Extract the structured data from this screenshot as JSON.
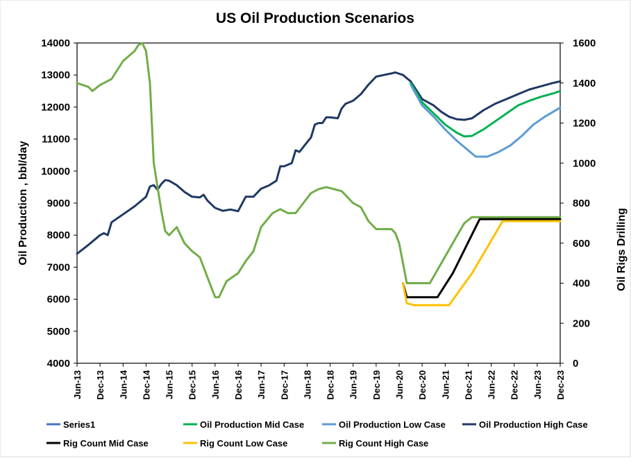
{
  "chart_data": {
    "type": "line",
    "title": "US Oil Production Scenarios",
    "ylabel": "Oil Production , bbl/day",
    "y2label": "Oil Rigs Drilling",
    "xlabel": "",
    "ylim": [
      4000,
      14000
    ],
    "y2lim": [
      0,
      1600
    ],
    "yticks": [
      4000,
      5000,
      6000,
      7000,
      8000,
      9000,
      10000,
      11000,
      12000,
      13000,
      14000
    ],
    "y2ticks": [
      0,
      200,
      400,
      600,
      800,
      1000,
      1200,
      1400,
      1600
    ],
    "x_start": "2013-06",
    "x_end": "2023-12",
    "x_ticks": [
      "Jun-13",
      "Dec-13",
      "Jun-14",
      "Dec-14",
      "Jun-15",
      "Dec-15",
      "Jun-16",
      "Dec-16",
      "Jun-17",
      "Dec-17",
      "Jun-18",
      "Dec-18",
      "Jun-19",
      "Dec-19",
      "Jun-20",
      "Dec-20",
      "Jun-21",
      "Dec-21",
      "Jun-22",
      "Dec-22",
      "Jun-23",
      "Dec-23"
    ],
    "grid": false,
    "legend": "bottom",
    "legend_entries": [
      {
        "name": "Series1",
        "color": "#4472C4"
      },
      {
        "name": "Oil Production Mid Case",
        "color": "#00B050"
      },
      {
        "name": "Oil Production Low Case",
        "color": "#5B9BD5"
      },
      {
        "name": "Oil Production High Case",
        "color": "#1F3864"
      },
      {
        "name": "Rig Count Mid Case",
        "color": "#000000"
      },
      {
        "name": "Rig Count Low Case",
        "color": "#FFC000"
      },
      {
        "name": "Rig Count High Case",
        "color": "#70AD47"
      }
    ],
    "series": [
      {
        "name": "Oil Production High Case",
        "axis": "left",
        "color": "#1F3864",
        "points": [
          [
            "2013-06",
            7420
          ],
          [
            "2013-09",
            7700
          ],
          [
            "2013-12",
            8000
          ],
          [
            "2014-01",
            8060
          ],
          [
            "2014-02",
            8000
          ],
          [
            "2014-03",
            8400
          ],
          [
            "2014-06",
            8650
          ],
          [
            "2014-09",
            8900
          ],
          [
            "2014-12",
            9200
          ],
          [
            "2015-01",
            9520
          ],
          [
            "2015-02",
            9560
          ],
          [
            "2015-03",
            9420
          ],
          [
            "2015-04",
            9600
          ],
          [
            "2015-05",
            9720
          ],
          [
            "2015-06",
            9700
          ],
          [
            "2015-08",
            9560
          ],
          [
            "2015-10",
            9350
          ],
          [
            "2015-12",
            9200
          ],
          [
            "2016-02",
            9180
          ],
          [
            "2016-03",
            9260
          ],
          [
            "2016-04",
            9080
          ],
          [
            "2016-06",
            8850
          ],
          [
            "2016-08",
            8760
          ],
          [
            "2016-10",
            8800
          ],
          [
            "2016-12",
            8750
          ],
          [
            "2017-02",
            9200
          ],
          [
            "2017-04",
            9200
          ],
          [
            "2017-06",
            9450
          ],
          [
            "2017-08",
            9550
          ],
          [
            "2017-10",
            9700
          ],
          [
            "2017-11",
            10150
          ],
          [
            "2017-12",
            10150
          ],
          [
            "2018-02",
            10250
          ],
          [
            "2018-03",
            10650
          ],
          [
            "2018-04",
            10600
          ],
          [
            "2018-06",
            10900
          ],
          [
            "2018-07",
            11050
          ],
          [
            "2018-08",
            11450
          ],
          [
            "2018-09",
            11500
          ],
          [
            "2018-10",
            11500
          ],
          [
            "2018-11",
            11680
          ],
          [
            "2018-12",
            11680
          ],
          [
            "2019-02",
            11650
          ],
          [
            "2019-03",
            11950
          ],
          [
            "2019-04",
            12100
          ],
          [
            "2019-06",
            12200
          ],
          [
            "2019-08",
            12400
          ],
          [
            "2019-10",
            12700
          ],
          [
            "2019-12",
            12950
          ],
          [
            "2020-02",
            13000
          ],
          [
            "2020-04",
            13050
          ],
          [
            "2020-05",
            13080
          ],
          [
            "2020-07",
            13000
          ],
          [
            "2020-09",
            12800
          ],
          [
            "2020-12",
            12250
          ],
          [
            "2021-03",
            12050
          ],
          [
            "2021-05",
            11850
          ],
          [
            "2021-07",
            11700
          ],
          [
            "2021-09",
            11620
          ],
          [
            "2021-11",
            11600
          ],
          [
            "2022-01",
            11650
          ],
          [
            "2022-04",
            11900
          ],
          [
            "2022-07",
            12100
          ],
          [
            "2022-10",
            12250
          ],
          [
            "2023-01",
            12400
          ],
          [
            "2023-04",
            12550
          ],
          [
            "2023-07",
            12650
          ],
          [
            "2023-10",
            12750
          ],
          [
            "2023-12",
            12800
          ]
        ]
      },
      {
        "name": "Oil Production Mid Case",
        "axis": "left",
        "color": "#00B050",
        "points": [
          [
            "2020-09",
            12750
          ],
          [
            "2020-12",
            12150
          ],
          [
            "2021-03",
            11800
          ],
          [
            "2021-06",
            11450
          ],
          [
            "2021-09",
            11200
          ],
          [
            "2021-11",
            11080
          ],
          [
            "2022-01",
            11100
          ],
          [
            "2022-04",
            11300
          ],
          [
            "2022-07",
            11550
          ],
          [
            "2022-10",
            11800
          ],
          [
            "2023-01",
            12050
          ],
          [
            "2023-04",
            12200
          ],
          [
            "2023-07",
            12320
          ],
          [
            "2023-10",
            12420
          ],
          [
            "2023-12",
            12500
          ]
        ]
      },
      {
        "name": "Oil Production Low Case",
        "axis": "left",
        "color": "#5B9BD5",
        "points": [
          [
            "2020-09",
            12700
          ],
          [
            "2020-12",
            12050
          ],
          [
            "2021-03",
            11700
          ],
          [
            "2021-06",
            11300
          ],
          [
            "2021-09",
            10950
          ],
          [
            "2021-12",
            10650
          ],
          [
            "2022-02",
            10450
          ],
          [
            "2022-05",
            10450
          ],
          [
            "2022-08",
            10600
          ],
          [
            "2022-11",
            10800
          ],
          [
            "2023-02",
            11100
          ],
          [
            "2023-05",
            11450
          ],
          [
            "2023-08",
            11700
          ],
          [
            "2023-12",
            11980
          ]
        ]
      },
      {
        "name": "Rig Count High Case",
        "axis": "right",
        "color": "#70AD47",
        "points": [
          [
            "2013-06",
            1400
          ],
          [
            "2013-09",
            1380
          ],
          [
            "2013-10",
            1360
          ],
          [
            "2013-12",
            1390
          ],
          [
            "2014-03",
            1420
          ],
          [
            "2014-06",
            1510
          ],
          [
            "2014-09",
            1560
          ],
          [
            "2014-10",
            1590
          ],
          [
            "2014-11",
            1600
          ],
          [
            "2014-12",
            1560
          ],
          [
            "2015-01",
            1400
          ],
          [
            "2015-02",
            1000
          ],
          [
            "2015-03",
            880
          ],
          [
            "2015-04",
            760
          ],
          [
            "2015-05",
            660
          ],
          [
            "2015-06",
            640
          ],
          [
            "2015-07",
            660
          ],
          [
            "2015-08",
            680
          ],
          [
            "2015-10",
            600
          ],
          [
            "2015-12",
            560
          ],
          [
            "2016-02",
            530
          ],
          [
            "2016-03",
            480
          ],
          [
            "2016-05",
            380
          ],
          [
            "2016-06",
            330
          ],
          [
            "2016-07",
            330
          ],
          [
            "2016-09",
            410
          ],
          [
            "2016-12",
            450
          ],
          [
            "2017-02",
            510
          ],
          [
            "2017-04",
            560
          ],
          [
            "2017-06",
            680
          ],
          [
            "2017-09",
            750
          ],
          [
            "2017-11",
            770
          ],
          [
            "2018-01",
            750
          ],
          [
            "2018-03",
            750
          ],
          [
            "2018-05",
            800
          ],
          [
            "2018-07",
            850
          ],
          [
            "2018-09",
            870
          ],
          [
            "2018-11",
            880
          ],
          [
            "2019-01",
            870
          ],
          [
            "2019-03",
            860
          ],
          [
            "2019-04",
            840
          ],
          [
            "2019-06",
            800
          ],
          [
            "2019-08",
            780
          ],
          [
            "2019-10",
            710
          ],
          [
            "2019-12",
            670
          ],
          [
            "2020-02",
            670
          ],
          [
            "2020-04",
            670
          ],
          [
            "2020-05",
            650
          ],
          [
            "2020-06",
            600
          ],
          [
            "2020-08",
            400
          ],
          [
            "2020-10",
            400
          ],
          [
            "2020-12",
            400
          ],
          [
            "2021-02",
            400
          ],
          [
            "2021-05",
            500
          ],
          [
            "2021-08",
            600
          ],
          [
            "2021-11",
            700
          ],
          [
            "2022-01",
            730
          ],
          [
            "2022-06",
            730
          ],
          [
            "2023-01",
            730
          ],
          [
            "2023-06",
            730
          ],
          [
            "2023-12",
            730
          ]
        ]
      },
      {
        "name": "Rig Count Mid Case",
        "axis": "right",
        "color": "#000000",
        "points": [
          [
            "2020-07",
            400
          ],
          [
            "2020-08",
            330
          ],
          [
            "2020-10",
            330
          ],
          [
            "2021-04",
            330
          ],
          [
            "2021-08",
            450
          ],
          [
            "2022-03",
            720
          ],
          [
            "2022-06",
            720
          ],
          [
            "2023-01",
            720
          ],
          [
            "2023-06",
            720
          ],
          [
            "2023-12",
            720
          ]
        ]
      },
      {
        "name": "Rig Count Low Case",
        "axis": "right",
        "color": "#FFC000",
        "points": [
          [
            "2020-07",
            400
          ],
          [
            "2020-08",
            300
          ],
          [
            "2020-10",
            290
          ],
          [
            "2021-05",
            290
          ],
          [
            "2021-07",
            290
          ],
          [
            "2022-01",
            450
          ],
          [
            "2022-09",
            710
          ],
          [
            "2023-01",
            710
          ],
          [
            "2023-06",
            710
          ],
          [
            "2023-12",
            710
          ]
        ]
      }
    ]
  }
}
